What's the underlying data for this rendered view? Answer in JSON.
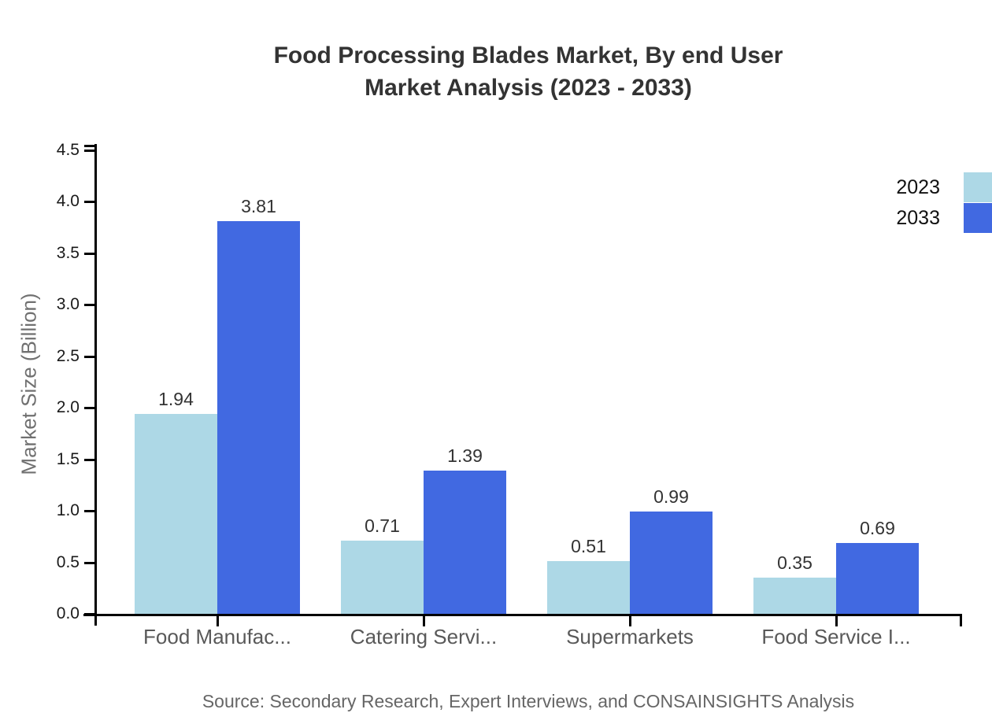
{
  "title": {
    "line1": "Food Processing Blades Market, By end User",
    "line2": "Market Analysis (2023 - 2033)"
  },
  "source": {
    "text": "Source: Secondary Research, Expert Interviews, and CONSAINSIGHTS Analysis"
  },
  "colors": {
    "series_2023": "#ADD8E6",
    "series_2033": "#4169E1",
    "axis": "#000000",
    "title_text": "#333333",
    "category_text": "#595959",
    "muted_text": "#666666"
  },
  "chart_data": {
    "type": "bar",
    "categories": [
      "Food Manufac...",
      "Catering Servi...",
      "Supermarkets",
      "Food Service I..."
    ],
    "series": [
      {
        "name": "2023",
        "color": "#ADD8E6",
        "values": [
          1.94,
          0.71,
          0.51,
          0.35
        ]
      },
      {
        "name": "2033",
        "color": "#4169E1",
        "values": [
          3.81,
          1.39,
          0.99,
          0.69
        ]
      }
    ],
    "value_labels": [
      [
        "1.94",
        "0.71",
        "0.51",
        "0.35"
      ],
      [
        "3.81",
        "1.39",
        "0.99",
        "0.69"
      ]
    ],
    "title": "Food Processing Blades Market, By end User Market Analysis (2023 - 2033)",
    "xlabel": "",
    "ylabel": "Market Size (Billion)",
    "ylim": [
      0,
      4.5
    ],
    "yticks": [
      "0.0",
      "0.5",
      "1.0",
      "1.5",
      "2.0",
      "2.5",
      "3.0",
      "3.5",
      "4.0",
      "4.5"
    ],
    "grid": false,
    "legend_position": "outside upper right"
  }
}
